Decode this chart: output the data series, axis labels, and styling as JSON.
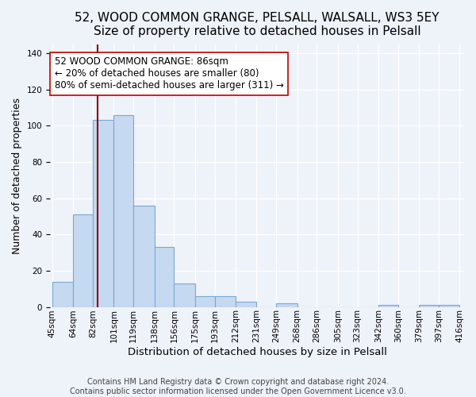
{
  "title": "52, WOOD COMMON GRANGE, PELSALL, WALSALL, WS3 5EY",
  "subtitle": "Size of property relative to detached houses in Pelsall",
  "xlabel": "Distribution of detached houses by size in Pelsall",
  "ylabel": "Number of detached properties",
  "bar_edges": [
    45,
    64,
    82,
    101,
    119,
    138,
    156,
    175,
    193,
    212,
    231,
    249,
    268,
    286,
    305,
    323,
    342,
    360,
    379,
    397,
    416
  ],
  "bar_heights": [
    14,
    51,
    103,
    106,
    56,
    33,
    13,
    6,
    6,
    3,
    0,
    2,
    0,
    0,
    0,
    0,
    1,
    0,
    1,
    1
  ],
  "bar_color": "#c5d9f0",
  "bar_edgecolor": "#7aa8d4",
  "bar_linewidth": 0.8,
  "vline_x": 86,
  "vline_color": "#8b0000",
  "vline_linewidth": 1.5,
  "annotation_text": "52 WOOD COMMON GRANGE: 86sqm\n← 20% of detached houses are smaller (80)\n80% of semi-detached houses are larger (311) →",
  "annotation_boxcolor": "white",
  "annotation_boxedge": "#c00000",
  "ylim": [
    0,
    145
  ],
  "xlim_left": 43,
  "xlim_right": 420,
  "background_color": "#eef2f9",
  "footer1": "Contains HM Land Registry data © Crown copyright and database right 2024.",
  "footer2": "Contains public sector information licensed under the Open Government Licence v3.0.",
  "title_fontsize": 11,
  "subtitle_fontsize": 10,
  "xlabel_fontsize": 9.5,
  "ylabel_fontsize": 9,
  "tick_fontsize": 7.5,
  "annotation_fontsize": 8.5,
  "footer_fontsize": 7
}
